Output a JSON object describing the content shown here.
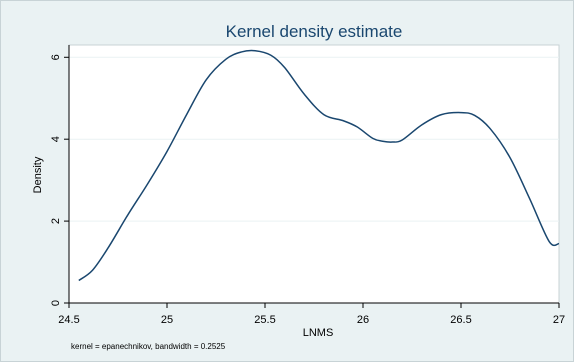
{
  "chart_data": {
    "type": "line",
    "title": "Kernel density estimate",
    "xlabel": "LNMS",
    "ylabel": "Density",
    "note": "kernel = epanechnikov, bandwidth = 0.2525",
    "xlim": [
      24.5,
      27.0
    ],
    "ylim": [
      0,
      6.3
    ],
    "xticks": [
      24.5,
      25,
      25.5,
      26,
      26.5,
      27
    ],
    "xtick_labels": [
      "24.5",
      "25",
      "25.5",
      "26",
      "26.5",
      "27"
    ],
    "yticks": [
      0,
      2,
      4,
      6
    ],
    "ytick_labels": [
      "0",
      "2",
      "4",
      "6"
    ],
    "grid": "horizontal",
    "series": [
      {
        "color": "#1a476f",
        "x": [
          24.55,
          24.62,
          24.7,
          24.8,
          24.9,
          25.0,
          25.1,
          25.2,
          25.3,
          25.38,
          25.45,
          25.53,
          25.6,
          25.7,
          25.8,
          25.9,
          25.97,
          26.05,
          26.1,
          26.15,
          26.2,
          26.3,
          26.4,
          26.5,
          26.57,
          26.65,
          26.75,
          26.85,
          26.95,
          27.0
        ],
        "y": [
          0.55,
          0.8,
          1.35,
          2.15,
          2.9,
          3.7,
          4.6,
          5.45,
          5.95,
          6.13,
          6.16,
          6.05,
          5.75,
          5.1,
          4.6,
          4.45,
          4.3,
          4.02,
          3.95,
          3.93,
          3.98,
          4.35,
          4.6,
          4.65,
          4.58,
          4.25,
          3.55,
          2.55,
          1.5,
          1.45
        ]
      }
    ]
  }
}
